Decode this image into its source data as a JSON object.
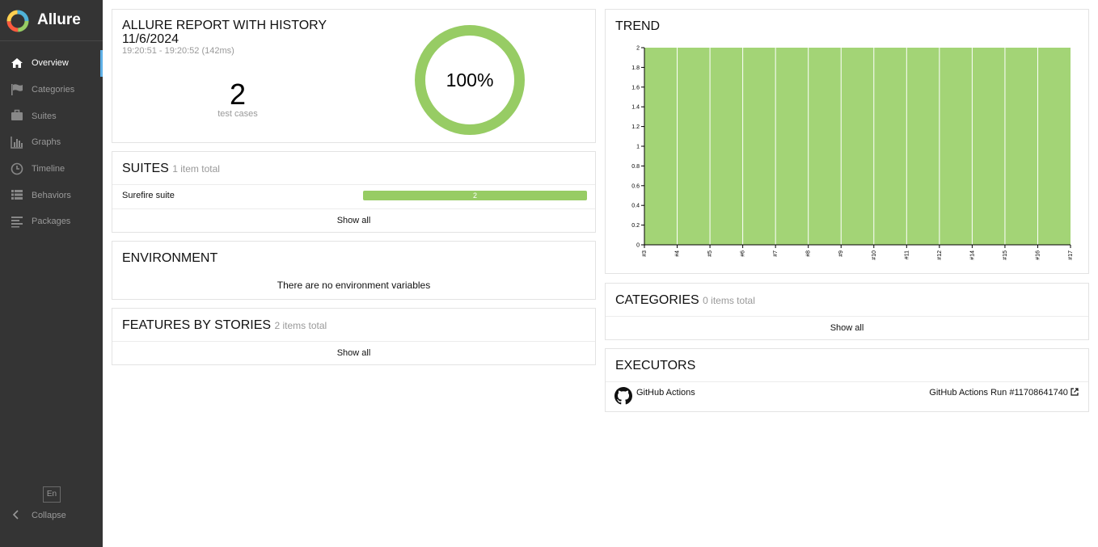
{
  "app": {
    "name": "Allure"
  },
  "sidebar": {
    "items": [
      {
        "label": "Overview",
        "icon": "home-icon",
        "active": true
      },
      {
        "label": "Categories",
        "icon": "flag-icon",
        "active": false
      },
      {
        "label": "Suites",
        "icon": "briefcase-icon",
        "active": false
      },
      {
        "label": "Graphs",
        "icon": "bar-chart-icon",
        "active": false
      },
      {
        "label": "Timeline",
        "icon": "clock-icon",
        "active": false
      },
      {
        "label": "Behaviors",
        "icon": "list-icon",
        "active": false
      },
      {
        "label": "Packages",
        "icon": "align-left-icon",
        "active": false
      }
    ],
    "language": "En",
    "collapse_label": "Collapse"
  },
  "summary": {
    "title_line1": "ALLURE REPORT WITH HISTORY",
    "title_line2": "11/6/2024",
    "time_range": "19:20:51 - 19:20:52 (142ms)",
    "count": "2",
    "count_label": "test cases",
    "percent": "100%",
    "pass_fraction": 1.0
  },
  "suites": {
    "title": "SUITES",
    "count_text": "1 item total",
    "rows": [
      {
        "name": "Surefire suite",
        "value": "2"
      }
    ],
    "show_all": "Show all"
  },
  "environment": {
    "title": "ENVIRONMENT",
    "empty_text": "There are no environment variables"
  },
  "features": {
    "title": "FEATURES BY STORIES",
    "count_text": "2 items total",
    "show_all": "Show all"
  },
  "trend": {
    "title": "TREND"
  },
  "categories": {
    "title": "CATEGORIES",
    "count_text": "0 items total",
    "show_all": "Show all"
  },
  "executors": {
    "title": "EXECUTORS",
    "name": "GitHub Actions",
    "run": "GitHub Actions Run #11708641740",
    "icon": "github-icon"
  },
  "colors": {
    "passed": "#97cc64",
    "sidebar": "#343434",
    "active_accent": "#5fb0e6"
  },
  "chart_data": {
    "type": "area",
    "title": "TREND",
    "categories": [
      "#3",
      "#4",
      "#5",
      "#6",
      "#7",
      "#8",
      "#9",
      "#10",
      "#11",
      "#12",
      "#14",
      "#15",
      "#16",
      "#17"
    ],
    "series": [
      {
        "values": [
          2,
          2,
          2,
          2,
          2,
          2,
          2,
          2,
          2,
          2,
          2,
          2,
          2,
          2
        ]
      }
    ],
    "ylim": [
      0,
      2
    ],
    "yticks": [
      "0",
      "0.2",
      "0.4",
      "0.6",
      "0.8",
      "1",
      "1.2",
      "1.4",
      "1.6",
      "1.8",
      "2"
    ],
    "grid": false
  }
}
